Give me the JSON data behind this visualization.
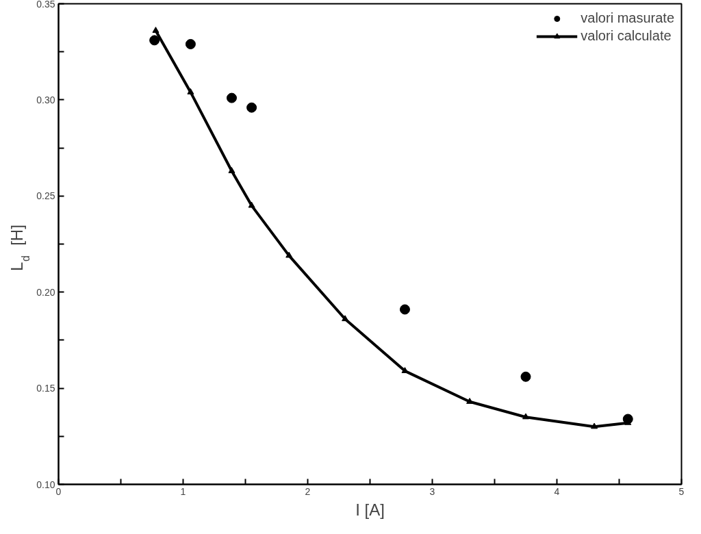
{
  "chart_data": {
    "type": "scatter",
    "xlabel": "I [A]",
    "ylabel": "L$_{d}$ [H]",
    "xlim": [
      0,
      5
    ],
    "ylim": [
      0.1,
      0.35
    ],
    "xticks": [
      0,
      {
        "value": 0.5,
        "label": null
      },
      1,
      {
        "value": 1.5,
        "label": null
      },
      2,
      {
        "value": 2.5,
        "label": null
      },
      3,
      {
        "value": 3.5,
        "label": null
      },
      4,
      {
        "value": 4.5,
        "label": null
      },
      5
    ],
    "yticks": [
      {
        "value": 0.1,
        "label": "0.10"
      },
      {
        "value": 0.125,
        "label": null
      },
      {
        "value": 0.15,
        "label": "0.15"
      },
      {
        "value": 0.175,
        "label": null
      },
      {
        "value": 0.2,
        "label": "0.20"
      },
      {
        "value": 0.225,
        "label": null
      },
      {
        "value": 0.25,
        "label": "0.25"
      },
      {
        "value": 0.275,
        "label": null
      },
      {
        "value": 0.3,
        "label": "0.30"
      },
      {
        "value": 0.325,
        "label": null
      },
      {
        "value": 0.35,
        "label": "0.35"
      }
    ],
    "grid": false,
    "legend": "top right",
    "series": [
      {
        "name": "valori masurate",
        "marker": "circle",
        "color": "#000000",
        "x": [
          0.77,
          1.06,
          1.39,
          1.55,
          2.78,
          3.75,
          4.57
        ],
        "values": [
          0.331,
          0.329,
          0.301,
          0.296,
          0.191,
          0.156,
          0.134
        ]
      },
      {
        "name": "valori calculate",
        "type": "line",
        "marker": "triangle",
        "color": "#000000",
        "x": [
          0.78,
          1.06,
          1.39,
          1.55,
          1.85,
          2.3,
          2.78,
          3.3,
          3.75,
          4.3,
          4.57
        ],
        "values": [
          0.336,
          0.304,
          0.263,
          0.245,
          0.219,
          0.186,
          0.159,
          0.143,
          0.135,
          0.13,
          0.132
        ]
      }
    ]
  }
}
